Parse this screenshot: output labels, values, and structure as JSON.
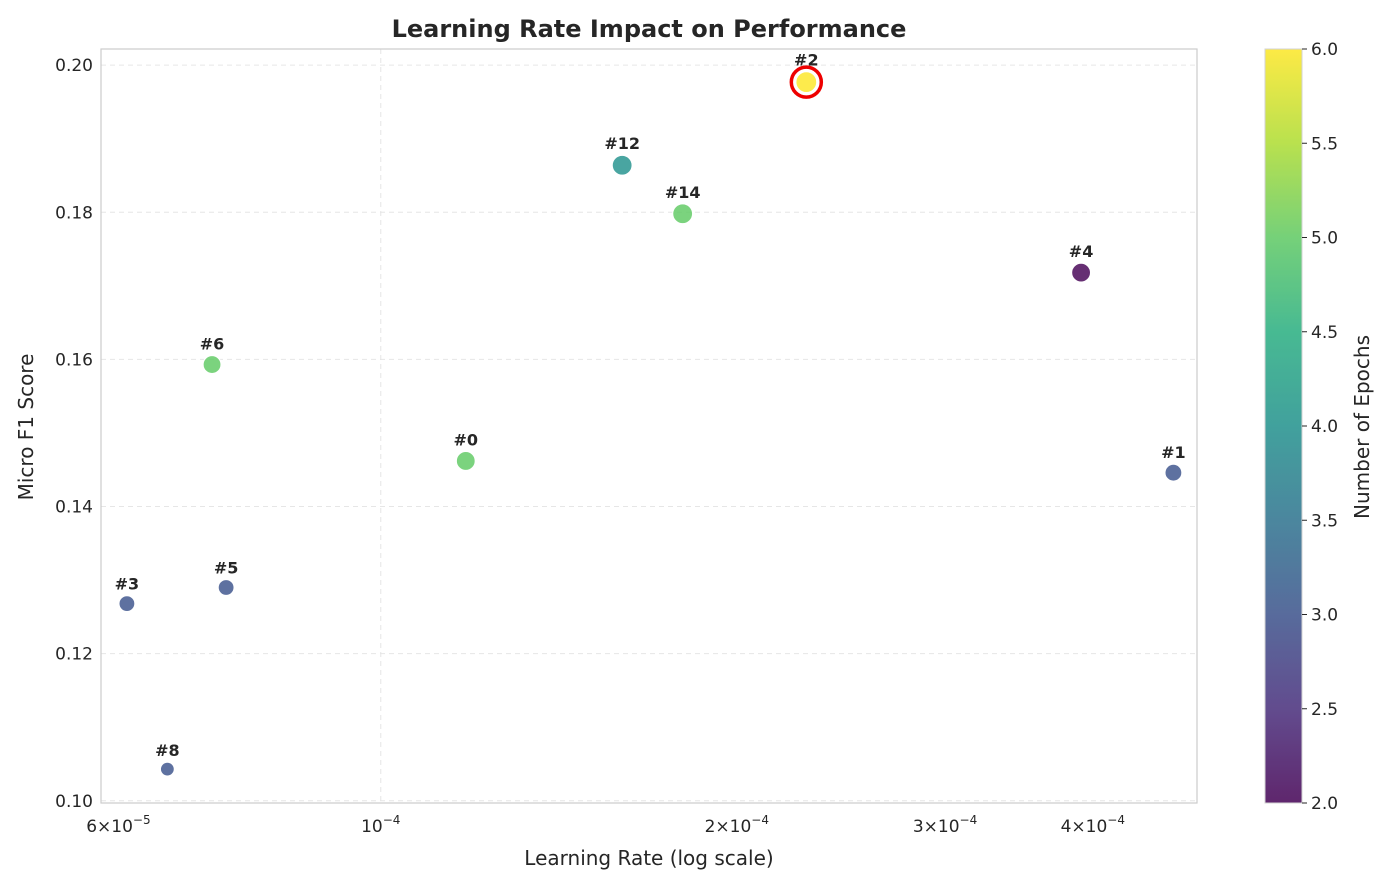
{
  "chart_data": {
    "type": "scatter",
    "title": "Learning Rate Impact on Performance",
    "xlabel": "Learning Rate (log scale)",
    "ylabel": "Micro F1 Score",
    "x_scale": "log",
    "xlim": [
      5.8e-05,
      0.00049
    ],
    "ylim": [
      0.0997,
      0.2022
    ],
    "x_ticks": [
      {
        "value": 6e-05,
        "mantissa": "6",
        "exponent": "−5"
      },
      {
        "value": 0.0001,
        "mantissa": "",
        "exponent": "−4"
      },
      {
        "value": 0.0002,
        "mantissa": "2",
        "exponent": "−4"
      },
      {
        "value": 0.0003,
        "mantissa": "3",
        "exponent": "−4"
      },
      {
        "value": 0.0004,
        "mantissa": "4",
        "exponent": "−4"
      }
    ],
    "y_ticks": [
      {
        "value": 0.1,
        "label": "0.10"
      },
      {
        "value": 0.12,
        "label": "0.12"
      },
      {
        "value": 0.14,
        "label": "0.14"
      },
      {
        "value": 0.16,
        "label": "0.16"
      },
      {
        "value": 0.18,
        "label": "0.18"
      },
      {
        "value": 0.2,
        "label": "0.20"
      }
    ],
    "grid": true,
    "colorbar": {
      "label": "Number of Epochs",
      "colormap": "viridis",
      "min": 2.0,
      "max": 6.0,
      "ticks": [
        "2.0",
        "2.5",
        "3.0",
        "3.5",
        "4.0",
        "4.5",
        "5.0",
        "5.5",
        "6.0"
      ]
    },
    "highlight": "#2",
    "points": [
      {
        "label": "#0",
        "x": 0.000118,
        "y": 0.1462,
        "epochs": 5,
        "size": 9.5
      },
      {
        "label": "#1",
        "x": 0.000468,
        "y": 0.1446,
        "epochs": 3,
        "size": 8.5
      },
      {
        "label": "#2",
        "x": 0.000229,
        "y": 0.1977,
        "epochs": 6,
        "size": 10.5
      },
      {
        "label": "#3",
        "x": 6.1e-05,
        "y": 0.1268,
        "epochs": 3,
        "size": 8
      },
      {
        "label": "#4",
        "x": 0.000391,
        "y": 0.1718,
        "epochs": 2,
        "size": 9.5
      },
      {
        "label": "#5",
        "x": 7.4e-05,
        "y": 0.129,
        "epochs": 3,
        "size": 8
      },
      {
        "label": "#6",
        "x": 7.2e-05,
        "y": 0.1593,
        "epochs": 5,
        "size": 9
      },
      {
        "label": "#8",
        "x": 6.6e-05,
        "y": 0.1043,
        "epochs": 3,
        "size": 7
      },
      {
        "label": "#12",
        "x": 0.00016,
        "y": 0.1864,
        "epochs": 4,
        "size": 10
      },
      {
        "label": "#14",
        "x": 0.00018,
        "y": 0.1798,
        "epochs": 5,
        "size": 10
      }
    ]
  }
}
